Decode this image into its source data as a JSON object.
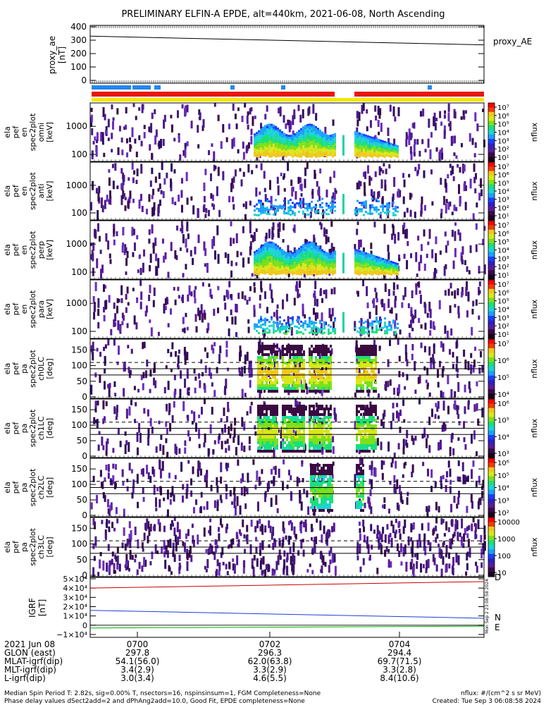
{
  "title": "PRELIMINARY ELFIN-A EPDE, alt=440km, 2021-06-08, North Ascending",
  "proxy_panel": {
    "ylabel": "proxy_ae\n[nT]",
    "yticks": [
      "400",
      "300",
      "200",
      "100",
      "0"
    ],
    "legend": "proxy_AE"
  },
  "energy_panels": [
    {
      "ylabel": [
        "ela",
        "pef",
        "en",
        "spec2plot",
        "omni",
        "[keV]"
      ],
      "yticks": [
        "1000",
        "100"
      ]
    },
    {
      "ylabel": [
        "ela",
        "pef",
        "en",
        "spec2plot",
        "anti",
        "[keV]"
      ],
      "yticks": [
        "1000",
        "100"
      ]
    },
    {
      "ylabel": [
        "ela",
        "pef",
        "en",
        "spec2plot",
        "perp",
        "[keV]"
      ],
      "yticks": [
        "1000",
        "100"
      ]
    },
    {
      "ylabel": [
        "ela",
        "pef",
        "en",
        "spec2plot",
        "para",
        "[keV]"
      ],
      "yticks": [
        "1000",
        "100"
      ]
    }
  ],
  "pa_panels": [
    {
      "ylabel": [
        "ela",
        "pef",
        "pa",
        "spec2plot",
        "ch0LC",
        "[deg]"
      ],
      "yticks": [
        "150",
        "100",
        "50",
        "0"
      ]
    },
    {
      "ylabel": [
        "ela",
        "pef",
        "pa",
        "spec2plot",
        "ch1LC",
        "[deg]"
      ],
      "yticks": [
        "150",
        "100",
        "50",
        "0"
      ]
    },
    {
      "ylabel": [
        "ela",
        "pef",
        "pa",
        "spec2plot",
        "ch2LC",
        "[deg]"
      ],
      "yticks": [
        "150",
        "100",
        "50",
        "0"
      ]
    },
    {
      "ylabel": [
        "ela",
        "pef",
        "pa",
        "spec2plot",
        "ch3LC",
        "[deg]"
      ],
      "yticks": [
        "150",
        "100",
        "50",
        "0"
      ]
    }
  ],
  "colorbars": [
    {
      "label": "nflux",
      "ticks": [
        "10⁷",
        "10⁶",
        "10⁵",
        "10⁴",
        "10³",
        "10²",
        "10¹"
      ]
    },
    {
      "label": "nflux",
      "ticks": [
        "10⁷",
        "10⁶",
        "10⁵",
        "10⁴",
        "10³",
        "10²",
        "10¹"
      ]
    },
    {
      "label": "nflux",
      "ticks": [
        "10⁷",
        "10⁶",
        "10⁵",
        "10⁴",
        "10³",
        "10²",
        "10¹"
      ]
    },
    {
      "label": "nflux",
      "ticks": [
        "10⁷",
        "10⁶",
        "10⁵",
        "10⁴",
        "10³",
        "10²",
        "10¹"
      ]
    },
    {
      "label": "nflux",
      "ticks": [
        "10⁷",
        "10⁶",
        "10⁵",
        "10⁴"
      ]
    },
    {
      "label": "nflux",
      "ticks": [
        "10⁶",
        "10⁵",
        "10⁴",
        "10³"
      ]
    },
    {
      "label": "nflux",
      "ticks": [
        "10⁶",
        "10⁵",
        "10⁴",
        "10³",
        "10²"
      ]
    },
    {
      "label": "nflux",
      "ticks": [
        "10000",
        "1000",
        "100",
        "10"
      ]
    }
  ],
  "igrf_panel": {
    "ylabel": "IGRF\n[nT]",
    "yticks": [
      "5×10⁴",
      "4×10⁴",
      "3×10⁴",
      "2×10⁴",
      "1×10⁴",
      "0",
      "−1×10⁴"
    ],
    "labels": {
      "d": "D",
      "n": "N",
      "e": "E"
    },
    "stamp": "Mon Sep  2 23:08:58 2024"
  },
  "colors": {
    "d": "#cc0000",
    "n": "#1a3fd6",
    "e": "#00b000",
    "bar_blue": "#2288ee",
    "bar_red": "#e8160c",
    "bar_yellow": "#f6e600"
  },
  "chart_data": {
    "type": "heatmap",
    "title": "PRELIMINARY ELFIN-A EPDE, alt=440km, 2021-06-08, North Ascending",
    "x_ticks": [
      "0700",
      "0702",
      "0704"
    ],
    "proxy_ae": {
      "x": [
        "06:59:00",
        "07:05:00"
      ],
      "values": [
        330,
        265
      ],
      "ylim": [
        0,
        400
      ]
    },
    "igrf": {
      "D": {
        "values": [
          40000,
          47000
        ]
      },
      "N": {
        "values": [
          16000,
          7500
        ]
      },
      "E": {
        "values": [
          -3000,
          -1000
        ]
      },
      "ylim": [
        -10000,
        50000
      ]
    }
  },
  "footer_table": {
    "rows": [
      {
        "label": "2021 Jun 08",
        "vals": [
          "0700",
          "0702",
          "0704"
        ]
      },
      {
        "label": "GLON (east)",
        "vals": [
          "297.8",
          "296.3",
          "294.4"
        ]
      },
      {
        "label": "MLAT-igrf(dip)",
        "vals": [
          "54.1(56.0)",
          "62.0(63.8)",
          "69.7(71.5)"
        ]
      },
      {
        "label": "MLT-igrf(dip)",
        "vals": [
          "3.4(2.9)",
          "3.3(2.9)",
          "3.3(2.8)"
        ]
      },
      {
        "label": "L-igrf(dip)",
        "vals": [
          "3.0(3.4)",
          "4.6(5.5)",
          "8.4(10.6)"
        ]
      }
    ]
  },
  "notes": {
    "line1": "Median Spin Period T: 2.82s, sig=0.00% T, nsectors=16, nspinsinsum=1, FGM Completeness=None",
    "line2": "Phase delay values dSect2add=2 and dPhAng2add=10.0, Good Fit, EPDE completeness=None",
    "units": "nflux: #/(cm^2 s sr MeV)",
    "created": "Created: Tue Sep  3 06:08:58 2024"
  }
}
